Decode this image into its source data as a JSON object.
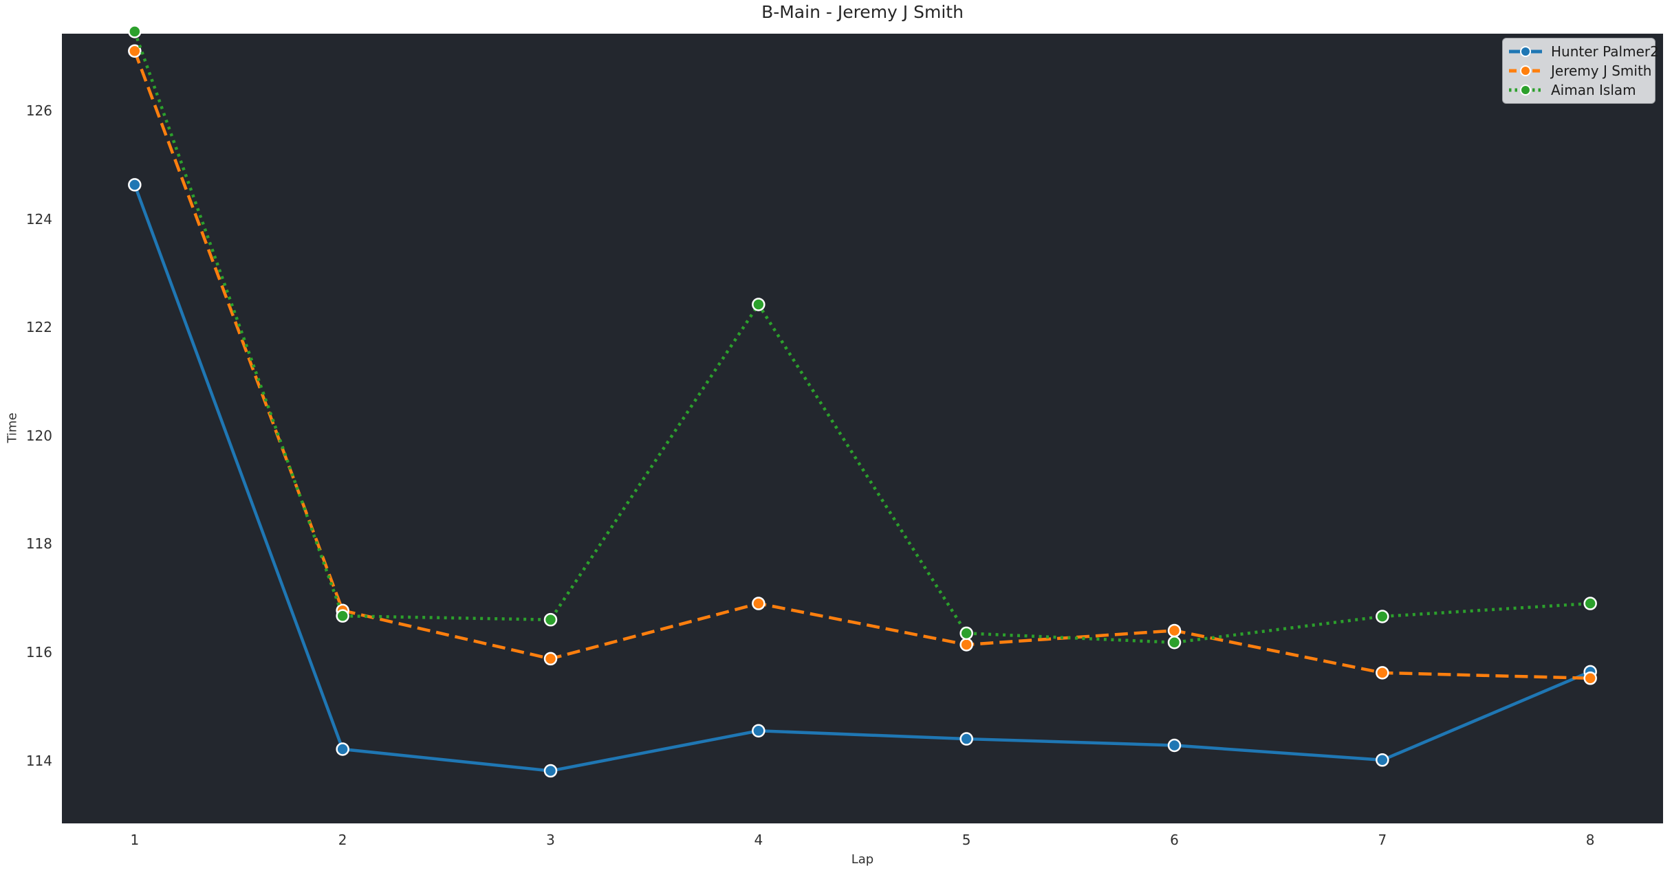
{
  "chart_data": {
    "type": "line",
    "title": "B-Main - Jeremy J Smith",
    "xlabel": "Lap",
    "ylabel": "Time",
    "x": [
      1,
      2,
      3,
      4,
      5,
      6,
      7,
      8
    ],
    "series": [
      {
        "name": "Hunter Palmer2",
        "color": "#1f77b4",
        "style": "solid",
        "values": [
          124.63,
          114.21,
          113.81,
          114.55,
          114.4,
          114.28,
          114.01,
          115.64
        ]
      },
      {
        "name": "Jeremy J Smith",
        "color": "#ff7f0e",
        "style": "dashed",
        "values": [
          127.1,
          116.77,
          115.88,
          116.9,
          116.14,
          116.4,
          115.62,
          115.52
        ]
      },
      {
        "name": "Aiman Islam",
        "color": "#2ca02c",
        "style": "dotted",
        "values": [
          127.46,
          116.67,
          116.6,
          122.42,
          116.35,
          116.18,
          116.66,
          116.9
        ]
      }
    ],
    "xticks": [
      1,
      2,
      3,
      4,
      5,
      6,
      7,
      8
    ],
    "yticks": [
      114,
      116,
      118,
      120,
      122,
      124,
      126
    ],
    "xlim": [
      0.65,
      8.35
    ],
    "ylim": [
      112.84,
      127.42
    ],
    "grid": false,
    "legend_position": "upper-right",
    "marker": "circle",
    "colors": {
      "figure_bg": "#ffffff",
      "axes_bg": "#23272e",
      "text": "#303030",
      "legend_bg": "#d3d5d8",
      "legend_border": "#9da0a4",
      "marker_edge": "#ffffff"
    }
  }
}
